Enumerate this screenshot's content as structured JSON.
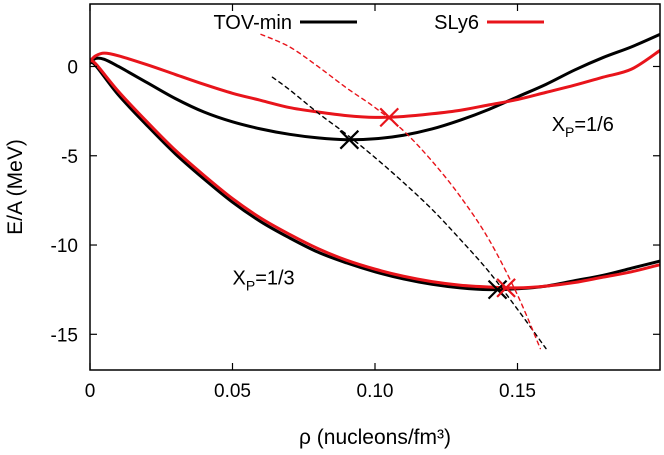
{
  "chart_data": {
    "type": "line",
    "xlabel": "ρ (nucleons/fm³)",
    "ylabel": "E/A (MeV)",
    "xlim": [
      0,
      0.2
    ],
    "ylim": [
      -17,
      3.5
    ],
    "x_ticks": [
      {
        "value": 0,
        "label": "0"
      },
      {
        "value": 0.05,
        "label": "0.05"
      },
      {
        "value": 0.1,
        "label": "0.10"
      },
      {
        "value": 0.15,
        "label": "0.15"
      }
    ],
    "y_ticks": [
      {
        "value": 0,
        "label": "0"
      },
      {
        "value": -5,
        "label": "-5"
      },
      {
        "value": -10,
        "label": "-10"
      },
      {
        "value": -15,
        "label": "-15"
      }
    ],
    "grid": false,
    "legend_position": "top",
    "legend": [
      {
        "name": "TOV-min",
        "color": "#000000"
      },
      {
        "name": "SLy6",
        "color": "#e8141b"
      }
    ],
    "annotations": [
      {
        "base": "X",
        "sub": "P",
        "rest": "=1/6",
        "x": 0.162,
        "y": -3.6
      },
      {
        "base": "X",
        "sub": "P",
        "rest": "=1/3",
        "x": 0.05,
        "y": -12.2
      }
    ],
    "series": [
      {
        "name": "TOV-min",
        "group": "xp-1/6",
        "color": "#000000",
        "style": "solid",
        "x": [
          0,
          0.002,
          0.005,
          0.01,
          0.02,
          0.03,
          0.04,
          0.05,
          0.06,
          0.07,
          0.08,
          0.09,
          0.1,
          0.11,
          0.12,
          0.13,
          0.14,
          0.15,
          0.16,
          0.17,
          0.18,
          0.19,
          0.2
        ],
        "y": [
          0.2,
          0.45,
          0.4,
          0.0,
          -0.9,
          -1.8,
          -2.55,
          -3.1,
          -3.5,
          -3.8,
          -4.0,
          -4.1,
          -4.05,
          -3.85,
          -3.5,
          -3.0,
          -2.4,
          -1.7,
          -1.0,
          -0.2,
          0.5,
          1.1,
          1.8
        ]
      },
      {
        "name": "SLy6",
        "group": "xp-1/6",
        "color": "#e8141b",
        "style": "solid",
        "x": [
          0,
          0.002,
          0.005,
          0.01,
          0.02,
          0.03,
          0.04,
          0.05,
          0.06,
          0.07,
          0.08,
          0.09,
          0.1,
          0.11,
          0.12,
          0.13,
          0.14,
          0.15,
          0.16,
          0.17,
          0.18,
          0.19,
          0.2
        ],
        "y": [
          0.3,
          0.6,
          0.75,
          0.6,
          0.1,
          -0.45,
          -1.0,
          -1.5,
          -1.9,
          -2.3,
          -2.55,
          -2.75,
          -2.85,
          -2.8,
          -2.65,
          -2.45,
          -2.15,
          -1.85,
          -1.45,
          -1.05,
          -0.6,
          -0.15,
          0.9
        ]
      },
      {
        "name": "TOV-min",
        "group": "xp-1/3",
        "color": "#000000",
        "style": "solid",
        "x": [
          0,
          0.002,
          0.01,
          0.02,
          0.03,
          0.04,
          0.05,
          0.06,
          0.07,
          0.08,
          0.09,
          0.1,
          0.11,
          0.12,
          0.13,
          0.14,
          0.15,
          0.16,
          0.17,
          0.18,
          0.19,
          0.2
        ],
        "y": [
          0.2,
          0.05,
          -1.6,
          -3.3,
          -4.9,
          -6.3,
          -7.6,
          -8.7,
          -9.6,
          -10.4,
          -11.0,
          -11.5,
          -11.9,
          -12.2,
          -12.4,
          -12.5,
          -12.45,
          -12.3,
          -12.0,
          -11.7,
          -11.3,
          -10.9
        ]
      },
      {
        "name": "SLy6",
        "group": "xp-1/3",
        "color": "#e8141b",
        "style": "solid",
        "x": [
          0,
          0.002,
          0.01,
          0.02,
          0.03,
          0.04,
          0.05,
          0.06,
          0.07,
          0.08,
          0.09,
          0.1,
          0.11,
          0.12,
          0.13,
          0.14,
          0.15,
          0.16,
          0.17,
          0.18,
          0.19,
          0.2
        ],
        "y": [
          0.3,
          0.15,
          -1.4,
          -3.1,
          -4.7,
          -6.1,
          -7.4,
          -8.5,
          -9.4,
          -10.2,
          -10.85,
          -11.35,
          -11.75,
          -12.05,
          -12.25,
          -12.35,
          -12.4,
          -12.3,
          -12.1,
          -11.8,
          -11.5,
          -11.1
        ]
      },
      {
        "name": "TOV-min",
        "group": "equilibrium-path",
        "color": "#000000",
        "style": "dashed",
        "x": [
          0.064,
          0.07,
          0.08,
          0.09,
          0.1,
          0.11,
          0.12,
          0.13,
          0.14,
          0.15,
          0.16
        ],
        "y": [
          -0.6,
          -1.3,
          -2.6,
          -3.8,
          -5.1,
          -6.5,
          -8.0,
          -9.7,
          -11.5,
          -13.6,
          -15.8
        ]
      },
      {
        "name": "SLy6",
        "group": "equilibrium-path",
        "color": "#e8141b",
        "style": "dashed",
        "x": [
          0.06,
          0.07,
          0.08,
          0.09,
          0.1,
          0.11,
          0.12,
          0.13,
          0.14,
          0.15,
          0.158
        ],
        "y": [
          1.8,
          1.1,
          0.0,
          -1.2,
          -2.3,
          -3.6,
          -5.3,
          -7.3,
          -9.7,
          -12.8,
          -15.8
        ]
      }
    ],
    "markers": [
      {
        "name": "TOV-min",
        "color": "#000000",
        "x": 0.091,
        "y": -4.1
      },
      {
        "name": "SLy6",
        "color": "#e8141b",
        "x": 0.105,
        "y": -2.85
      },
      {
        "name": "TOV-min",
        "color": "#000000",
        "x": 0.143,
        "y": -12.5
      },
      {
        "name": "SLy6",
        "color": "#e8141b",
        "x": 0.146,
        "y": -12.4
      }
    ]
  }
}
